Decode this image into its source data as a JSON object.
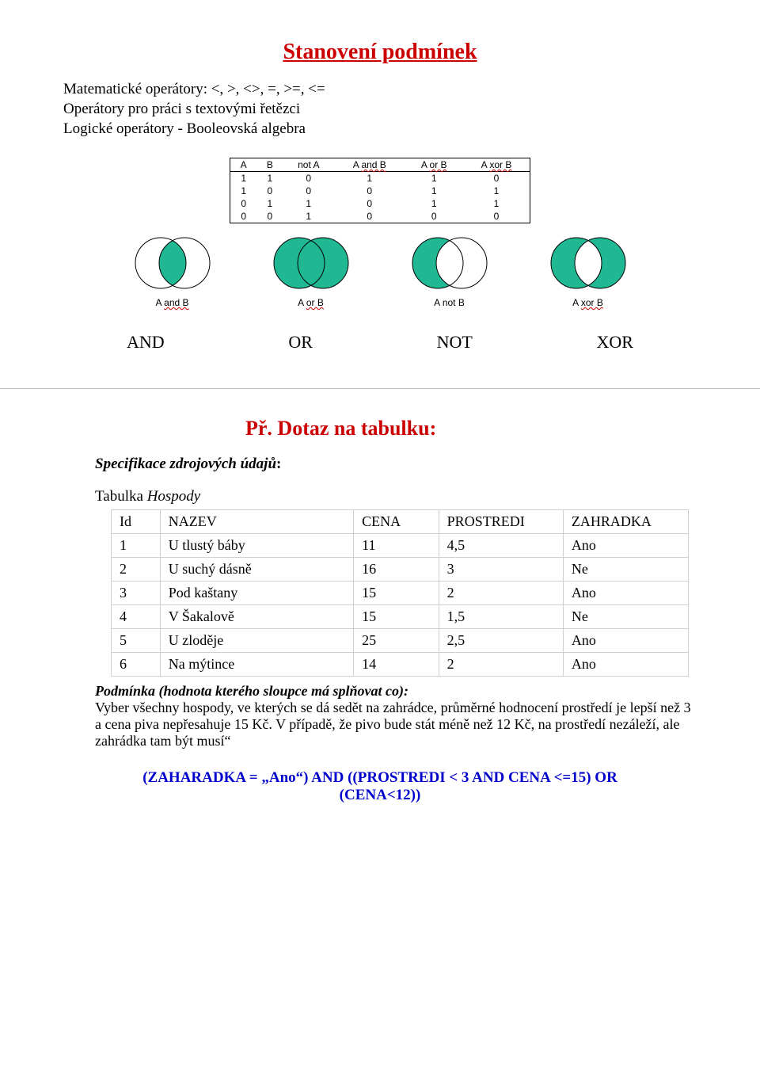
{
  "title": "Stanovení podmínek",
  "intro": {
    "line1": "Matematické operátory: <, >, <>, =, >=, <=",
    "line2": "Operátory pro práci s textovými řetězci",
    "line3": "Logické operátory - Booleovská algebra"
  },
  "truth_table": {
    "headers": [
      "A",
      "B",
      "not  A",
      "A and B",
      "A or B",
      "A xor B"
    ],
    "header_wavy": [
      false,
      false,
      false,
      true,
      true,
      true
    ],
    "rows": [
      [
        "1",
        "1",
        "0",
        "1",
        "1",
        "0"
      ],
      [
        "1",
        "0",
        "0",
        "0",
        "1",
        "1"
      ],
      [
        "0",
        "1",
        "1",
        "0",
        "1",
        "1"
      ],
      [
        "0",
        "0",
        "1",
        "0",
        "0",
        "0"
      ]
    ]
  },
  "venn": {
    "fill": "#1fb893",
    "stroke": "#000000",
    "labels": [
      "A and B",
      "A or B",
      "A not B",
      "A xor B"
    ],
    "label_wavy": [
      true,
      true,
      false,
      true
    ]
  },
  "op_labels": [
    "AND",
    "OR",
    "NOT",
    "XOR"
  ],
  "subtitle": "Př. Dotaz na tabulku:",
  "spec_label": "Specifikace zdrojových údajů",
  "table_caption_prefix": "Tabulka ",
  "table_caption_name": "Hospody",
  "data_table": {
    "headers": [
      "Id",
      "NAZEV",
      "CENA",
      "PROSTREDI",
      "ZAHRADKA"
    ],
    "rows": [
      [
        "1",
        "U tlustý báby",
        "11",
        "4,5",
        "Ano"
      ],
      [
        "2",
        "U suchý dásně",
        "16",
        "3",
        "Ne"
      ],
      [
        "3",
        "Pod kaštany",
        "15",
        "2",
        "Ano"
      ],
      [
        "4",
        "V Šakalově",
        "15",
        "1,5",
        "Ne"
      ],
      [
        "5",
        "U zloděje",
        "25",
        "2,5",
        "Ano"
      ],
      [
        "6",
        "Na mýtince",
        "14",
        "2",
        "Ano"
      ]
    ],
    "col_widths": [
      "50px",
      "280px",
      "100px",
      "150px",
      "150px"
    ]
  },
  "condition": {
    "lead": "Podmínka (hodnota kterého sloupce má splňovat co):",
    "body": "Vyber všechny hospody, ve kterých se dá sedět na zahrádce, průměrné hodnocení prostředí je lepší než 3 a cena piva nepřesahuje 15 Kč. V případě, že pivo bude stát méně než 12 Kč, na prostředí nezáleží, ale zahrádka tam být musí“"
  },
  "query": {
    "line1": "(ZAHARADKA = „Ano“) AND ((PROSTREDI < 3 AND CENA <=15) OR",
    "line2": "(CENA<12))"
  }
}
